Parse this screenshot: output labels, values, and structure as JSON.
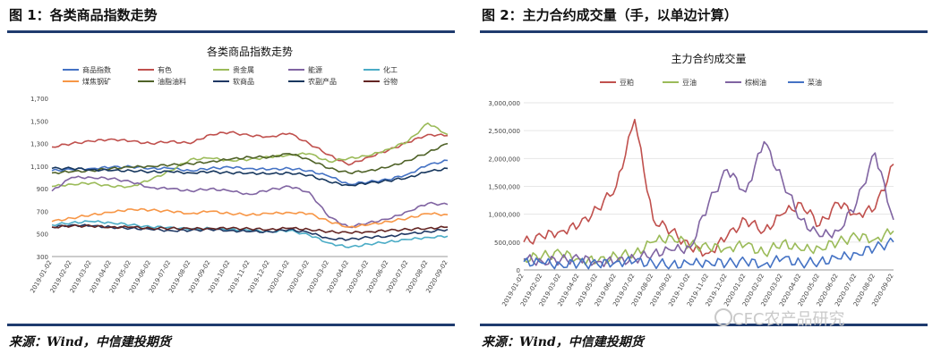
{
  "left_panel": {
    "figure_title": "图 1：各类商品指数走势",
    "source": "来源：Wind，中信建投期货"
  },
  "right_panel": {
    "figure_title": "图 2：主力合约成交量（手，以单边计算）",
    "source": "来源：Wind，中信建投期货"
  },
  "watermark": {
    "text": "CFC农产品研究"
  },
  "colors": {
    "rule": "#1f3b6e"
  },
  "chart_data": [
    {
      "type": "line",
      "title": "各类商品指数走势",
      "x": [
        "2019-01-02",
        "2019-02-02",
        "2019-03-02",
        "2019-04-02",
        "2019-05-02",
        "2019-06-02",
        "2019-07-02",
        "2019-08-02",
        "2019-09-02",
        "2019-10-02",
        "2019-11-02",
        "2019-12-02",
        "2020-01-02",
        "2020-02-02",
        "2020-03-02",
        "2020-04-02",
        "2020-05-02",
        "2020-06-02",
        "2020-07-02",
        "2020-08-02",
        "2020-09-02"
      ],
      "ylim": [
        300,
        1700
      ],
      "yticks": [
        "300",
        "500",
        "700",
        "900",
        "1,100",
        "1,300",
        "1,500",
        "1,700"
      ],
      "series": [
        {
          "name": "商品指数",
          "color": "#4472c4",
          "values": [
            1060,
            1070,
            1080,
            1090,
            1095,
            1080,
            1080,
            1060,
            1080,
            1090,
            1080,
            1070,
            1080,
            1060,
            1010,
            940,
            960,
            980,
            1030,
            1110,
            1150
          ]
        },
        {
          "name": "有色",
          "color": "#c0504d",
          "values": [
            1270,
            1300,
            1320,
            1340,
            1320,
            1300,
            1320,
            1300,
            1380,
            1400,
            1370,
            1360,
            1390,
            1300,
            1200,
            1110,
            1180,
            1240,
            1310,
            1380,
            1370
          ]
        },
        {
          "name": "贵金属",
          "color": "#9bbb59",
          "values": [
            920,
            940,
            950,
            920,
            920,
            980,
            1060,
            1160,
            1170,
            1150,
            1160,
            1180,
            1200,
            1210,
            1140,
            1170,
            1190,
            1250,
            1320,
            1480,
            1380
          ]
        },
        {
          "name": "能源",
          "color": "#8064a2",
          "values": [
            880,
            1000,
            1000,
            990,
            960,
            910,
            900,
            880,
            900,
            880,
            850,
            890,
            920,
            870,
            650,
            560,
            600,
            630,
            700,
            770,
            760
          ]
        },
        {
          "name": "化工",
          "color": "#4bacc6",
          "values": [
            580,
            600,
            610,
            600,
            580,
            560,
            560,
            540,
            550,
            540,
            530,
            520,
            530,
            490,
            420,
            380,
            410,
            430,
            450,
            470,
            480
          ]
        },
        {
          "name": "煤焦钢矿",
          "color": "#f79646",
          "values": [
            610,
            640,
            670,
            690,
            720,
            710,
            700,
            680,
            700,
            680,
            670,
            680,
            690,
            680,
            610,
            560,
            580,
            610,
            640,
            680,
            670
          ]
        },
        {
          "name": "油脂油料",
          "color": "#4f6228",
          "values": [
            1040,
            1050,
            1060,
            1080,
            1090,
            1100,
            1110,
            1120,
            1140,
            1160,
            1180,
            1180,
            1210,
            1160,
            1080,
            1040,
            1060,
            1090,
            1150,
            1220,
            1300
          ]
        },
        {
          "name": "软商品",
          "color": "#1f3864",
          "values": [
            560,
            580,
            570,
            560,
            550,
            540,
            530,
            530,
            540,
            530,
            520,
            520,
            540,
            510,
            460,
            450,
            470,
            480,
            500,
            520,
            540
          ]
        },
        {
          "name": "农副产品",
          "color": "#17375e",
          "values": [
            1080,
            1080,
            1070,
            1060,
            1060,
            1050,
            1050,
            1040,
            1050,
            1040,
            1040,
            1030,
            1040,
            1020,
            960,
            930,
            950,
            970,
            1000,
            1050,
            1080
          ]
        },
        {
          "name": "谷物",
          "color": "#632523",
          "values": [
            560,
            570,
            570,
            560,
            560,
            550,
            550,
            545,
            550,
            550,
            545,
            540,
            550,
            540,
            520,
            510,
            520,
            530,
            540,
            550,
            560
          ]
        }
      ]
    },
    {
      "type": "line",
      "title": "主力合约成交量",
      "x": [
        "2019-01-02",
        "2019-02-02",
        "2019-03-02",
        "2019-04-02",
        "2019-05-02",
        "2019-06-02",
        "2019-07-02",
        "2019-08-02",
        "2019-09-02",
        "2019-10-02",
        "2019-11-02",
        "2019-12-02",
        "2020-01-02",
        "2020-02-02",
        "2020-03-02",
        "2020-04-02",
        "2020-05-02",
        "2020-06-02",
        "2020-07-02",
        "2020-08-02",
        "2020-09-02"
      ],
      "ylim": [
        0,
        3000000
      ],
      "yticks": [
        "0",
        "500,000",
        "1,000,000",
        "1,500,000",
        "2,000,000",
        "2,500,000",
        "3,000,000"
      ],
      "series": [
        {
          "name": "豆粕",
          "color": "#c0504d",
          "values": [
            500000,
            600000,
            700000,
            800000,
            1100000,
            1500000,
            2700000,
            900000,
            700000,
            400000,
            300000,
            600000,
            900000,
            700000,
            1000000,
            1200000,
            800000,
            1200000,
            1000000,
            1100000,
            1900000
          ]
        },
        {
          "name": "豆油",
          "color": "#9bbb59",
          "values": [
            200000,
            250000,
            300000,
            200000,
            150000,
            250000,
            300000,
            500000,
            600000,
            450000,
            400000,
            400000,
            450000,
            300000,
            500000,
            350000,
            400000,
            500000,
            600000,
            550000,
            700000
          ]
        },
        {
          "name": "棕榈油",
          "color": "#8064a2",
          "values": [
            200000,
            150000,
            180000,
            200000,
            150000,
            150000,
            200000,
            300000,
            350000,
            400000,
            1200000,
            1800000,
            1400000,
            2300000,
            1600000,
            900000,
            600000,
            700000,
            1200000,
            2100000,
            900000
          ]
        },
        {
          "name": "菜油",
          "color": "#4472c4",
          "values": [
            150000,
            120000,
            100000,
            120000,
            100000,
            150000,
            150000,
            120000,
            100000,
            100000,
            150000,
            120000,
            150000,
            100000,
            200000,
            120000,
            150000,
            200000,
            300000,
            400000,
            500000
          ]
        }
      ]
    }
  ]
}
